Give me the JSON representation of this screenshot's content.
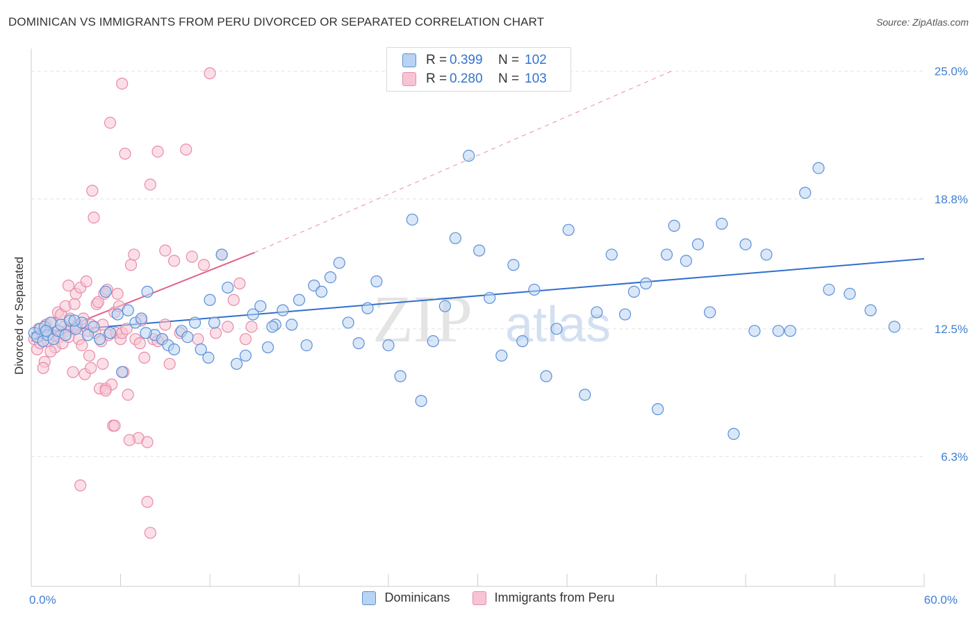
{
  "title": "DOMINICAN VS IMMIGRANTS FROM PERU DIVORCED OR SEPARATED CORRELATION CHART",
  "source": "Source: ZipAtlas.com",
  "watermark": {
    "zip": "ZIP",
    "atlas": "atlas"
  },
  "legend": {
    "rows": [
      {
        "r_label": "R =",
        "r_value": "0.399",
        "n_label": "N =",
        "n_value": "102"
      },
      {
        "r_label": "R =",
        "r_value": "0.280",
        "n_label": "N =",
        "n_value": "103"
      }
    ]
  },
  "bottom_legend": [
    "Dominicans",
    "Immigrants from Peru"
  ],
  "colors": {
    "blue_fill": "#b9d3f2",
    "blue_stroke": "#5a8fd6",
    "blue_line": "#2f6fcb",
    "pink_fill": "#f8c4d3",
    "pink_stroke": "#e88aa7",
    "pink_line": "#e0608a",
    "axis_text": "#3f7fd0",
    "grid": "#e2e2e2"
  },
  "chart_data": {
    "type": "scatter",
    "title": "DOMINICAN VS IMMIGRANTS FROM PERU DIVORCED OR SEPARATED CORRELATION CHART",
    "xlabel": "",
    "ylabel": "Divorced or Separated",
    "xlim": [
      0,
      60
    ],
    "ylim": [
      0,
      26.1
    ],
    "x_tick_labels": [
      {
        "value": 0,
        "label": "0.0%"
      },
      {
        "value": 60,
        "label": "60.0%"
      }
    ],
    "y_tick_labels": [
      {
        "value": 6.3,
        "label": "6.3%"
      },
      {
        "value": 12.5,
        "label": "12.5%"
      },
      {
        "value": 18.8,
        "label": "18.8%"
      },
      {
        "value": 25.0,
        "label": "25.0%"
      }
    ],
    "x_minor_ticks": [
      0,
      6,
      12,
      18,
      24,
      30,
      36,
      42,
      48,
      54,
      60
    ],
    "series": [
      {
        "name": "Dominicans",
        "R": 0.399,
        "N": 102,
        "trend": {
          "x": [
            0,
            60
          ],
          "y": [
            12.3,
            15.9
          ]
        },
        "x": [
          0.2,
          0.4,
          0.6,
          0.8,
          0.9,
          1.1,
          1.3,
          1.5,
          1.8,
          2.0,
          2.3,
          2.6,
          3.0,
          3.4,
          3.8,
          4.2,
          4.6,
          5.0,
          5.3,
          5.8,
          6.1,
          6.5,
          7.0,
          7.4,
          7.8,
          8.3,
          8.8,
          9.2,
          9.6,
          10.1,
          10.5,
          11.0,
          11.4,
          11.9,
          12.3,
          12.8,
          13.2,
          13.8,
          14.4,
          14.9,
          15.4,
          15.9,
          16.4,
          16.9,
          17.5,
          18.0,
          18.5,
          19.0,
          19.5,
          20.1,
          20.7,
          21.3,
          22.0,
          22.6,
          23.2,
          24.0,
          24.8,
          25.6,
          26.2,
          27.0,
          27.8,
          28.5,
          29.4,
          30.1,
          30.8,
          31.6,
          32.4,
          33.0,
          33.8,
          34.6,
          35.3,
          36.1,
          37.2,
          38.0,
          39.0,
          39.9,
          40.5,
          41.3,
          42.1,
          42.7,
          43.2,
          44.0,
          44.8,
          45.6,
          46.4,
          47.2,
          48.0,
          48.6,
          49.4,
          50.2,
          51.0,
          52.0,
          52.9,
          53.6,
          55.0,
          56.4,
          58.0,
          1.0,
          2.9,
          7.7,
          12.0,
          16.2
        ],
        "y": [
          12.3,
          12.1,
          12.5,
          11.9,
          12.6,
          12.2,
          12.8,
          12.0,
          12.4,
          12.7,
          12.2,
          12.9,
          12.5,
          12.8,
          12.2,
          12.6,
          12.0,
          14.3,
          12.3,
          13.2,
          10.4,
          13.4,
          12.8,
          13.0,
          14.3,
          12.2,
          12.0,
          11.7,
          11.5,
          12.4,
          12.1,
          12.8,
          11.5,
          11.1,
          12.8,
          16.1,
          14.5,
          10.8,
          11.2,
          13.2,
          13.6,
          11.6,
          12.7,
          13.4,
          12.7,
          13.9,
          11.7,
          14.6,
          14.3,
          15.0,
          15.7,
          12.8,
          11.8,
          13.5,
          14.8,
          11.7,
          10.2,
          17.8,
          9.0,
          11.9,
          13.6,
          16.9,
          20.9,
          16.3,
          14.0,
          11.2,
          15.6,
          11.9,
          14.4,
          10.2,
          12.5,
          17.3,
          9.3,
          13.3,
          16.1,
          13.2,
          14.3,
          14.7,
          8.6,
          16.1,
          17.5,
          15.8,
          16.6,
          13.3,
          17.6,
          7.4,
          16.6,
          12.4,
          16.1,
          12.4,
          12.4,
          19.1,
          20.3,
          14.4,
          14.2,
          13.4,
          12.6,
          12.4,
          12.9,
          12.3,
          13.9,
          12.6
        ],
        "color": "#5a8fd6"
      },
      {
        "name": "Immigrants from Peru",
        "R": 0.28,
        "N": 103,
        "trend": {
          "x": [
            0,
            15
          ],
          "y": [
            11.9,
            16.2
          ],
          "dashed_extension": {
            "x": [
              15,
              43
            ],
            "y": [
              16.2,
              25.0
            ]
          }
        },
        "x": [
          0.2,
          0.4,
          0.5,
          0.6,
          0.7,
          0.9,
          1.0,
          1.1,
          1.2,
          1.4,
          1.5,
          1.6,
          1.8,
          1.9,
          2.0,
          2.1,
          2.2,
          2.3,
          2.4,
          2.5,
          2.6,
          2.7,
          2.8,
          2.9,
          3.0,
          3.1,
          3.2,
          3.3,
          3.4,
          3.5,
          3.6,
          3.7,
          3.8,
          3.9,
          4.0,
          4.1,
          4.2,
          4.3,
          4.4,
          4.5,
          4.6,
          4.7,
          4.8,
          4.9,
          5.0,
          5.1,
          5.2,
          5.3,
          5.4,
          5.5,
          5.6,
          5.7,
          5.8,
          5.9,
          6.0,
          6.1,
          6.2,
          6.3,
          6.4,
          6.5,
          6.7,
          6.9,
          7.0,
          7.2,
          7.4,
          7.6,
          7.8,
          8.0,
          8.2,
          8.5,
          8.8,
          9.0,
          9.3,
          9.6,
          10.0,
          10.4,
          10.8,
          11.2,
          11.6,
          12.0,
          12.4,
          12.8,
          13.2,
          13.6,
          14.0,
          14.4,
          14.8,
          3.3,
          4.0,
          4.8,
          5.0,
          5.6,
          6.1,
          6.6,
          7.3,
          7.8,
          8.0,
          8.5,
          9.0,
          2.5,
          3.0,
          1.3,
          0.8
        ],
        "y": [
          12.0,
          11.5,
          12.5,
          11.8,
          12.3,
          10.9,
          12.7,
          11.9,
          12.3,
          12.8,
          12.2,
          11.6,
          13.3,
          12.1,
          13.2,
          11.8,
          12.6,
          13.6,
          12.4,
          14.6,
          13.0,
          12.5,
          10.4,
          13.7,
          14.2,
          12.7,
          12.0,
          14.5,
          11.7,
          13.0,
          10.3,
          14.8,
          12.4,
          11.2,
          12.7,
          19.2,
          17.9,
          12.3,
          13.7,
          13.8,
          9.6,
          11.9,
          12.7,
          14.2,
          9.6,
          14.4,
          12.2,
          22.5,
          9.8,
          7.8,
          13.3,
          12.3,
          14.2,
          13.6,
          12.0,
          12.3,
          10.4,
          21.0,
          12.5,
          9.3,
          15.6,
          16.1,
          12.0,
          7.2,
          12.9,
          11.1,
          7.0,
          19.5,
          12.0,
          21.1,
          12.0,
          16.3,
          10.8,
          15.8,
          12.3,
          21.2,
          16.0,
          12.0,
          15.6,
          24.9,
          12.3,
          16.1,
          12.6,
          13.9,
          14.7,
          12.0,
          12.6,
          4.9,
          10.6,
          10.8,
          9.5,
          7.8,
          24.4,
          7.1,
          11.8,
          4.1,
          2.6,
          11.9,
          12.7,
          12.1,
          12.6,
          11.4,
          10.6
        ],
        "color": "#e88aa7"
      }
    ]
  }
}
